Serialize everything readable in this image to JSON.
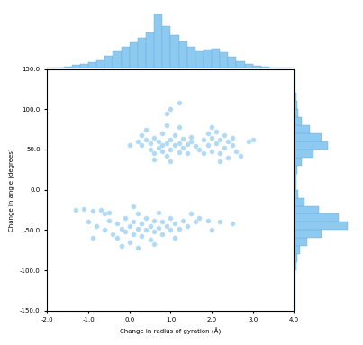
{
  "chart_data": {
    "type": "scatter",
    "x_label": "Change in radius of gyration (Å)",
    "y_label": "Change in angle (degrees)",
    "color": "#8ec9f0",
    "marker": "o",
    "xlim": [
      -2.0,
      4.0
    ],
    "xticks": [
      {
        "value": -2.0,
        "label": "-2.0"
      },
      {
        "value": -1.0,
        "label": "-1.0"
      },
      {
        "value": 0.0,
        "label": "0.0"
      },
      {
        "value": 1.0,
        "label": "1.0"
      },
      {
        "value": 2.0,
        "label": "2.0"
      },
      {
        "value": 3.0,
        "label": "3.0"
      },
      {
        "value": 4.0,
        "label": "4.0"
      }
    ],
    "ylim": [
      -150.0,
      150.0
    ],
    "yticks": [
      {
        "value": -150.0,
        "label": "-150.0"
      },
      {
        "value": -100.0,
        "label": "-100.0"
      },
      {
        "value": -50.0,
        "label": "-50.0"
      },
      {
        "value": 0.0,
        "label": "0.0"
      },
      {
        "value": 50.0,
        "label": "50.0"
      },
      {
        "value": 100.0,
        "label": "100.0"
      },
      {
        "value": 150.0,
        "label": "150.0"
      }
    ],
    "x": [
      0.2,
      0.3,
      0.4,
      0.5,
      0.5,
      0.6,
      0.6,
      0.7,
      0.7,
      0.8,
      0.8,
      0.8,
      0.9,
      0.9,
      1.0,
      1.0,
      1.1,
      1.1,
      1.2,
      1.2,
      1.3,
      1.3,
      1.4,
      1.4,
      1.5,
      1.5,
      1.6,
      0.4,
      0.9,
      1.2,
      0.6,
      1.0,
      0.3,
      1.7,
      0.0,
      1.8,
      1.9,
      1.9,
      2.0,
      2.0,
      2.1,
      2.1,
      2.2,
      2.2,
      2.3,
      2.3,
      2.4,
      2.4,
      2.5,
      2.6,
      2.7,
      2.0,
      1.8,
      2.5,
      2.2,
      1.0,
      1.2,
      0.9,
      2.9,
      3.0,
      -1.3,
      -1.1,
      -0.9,
      -0.7,
      -0.5,
      -1.0,
      -0.8,
      -0.6,
      -0.5,
      -0.4,
      -0.3,
      -0.3,
      -0.2,
      -0.1,
      -0.1,
      0.0,
      0.0,
      0.1,
      0.1,
      0.2,
      0.2,
      0.3,
      0.3,
      0.4,
      0.4,
      0.5,
      0.5,
      0.6,
      0.6,
      0.7,
      0.7,
      0.8,
      0.8,
      0.9,
      1.0,
      1.0,
      1.1,
      1.2,
      1.3,
      1.4,
      1.5,
      1.6,
      1.7,
      -0.2,
      0.2,
      0.6,
      -0.6,
      0.1,
      1.9,
      2.2,
      2.5,
      2.0,
      -0.9,
      1.1
    ],
    "y": [
      60,
      55,
      62,
      50,
      58,
      65,
      45,
      52,
      60,
      48,
      55,
      70,
      58,
      42,
      62,
      50,
      55,
      68,
      47,
      58,
      63,
      52,
      57,
      45,
      60,
      66,
      54,
      75,
      80,
      78,
      38,
      35,
      68,
      50,
      55,
      62,
      70,
      55,
      65,
      48,
      72,
      58,
      62,
      45,
      68,
      52,
      60,
      40,
      55,
      48,
      42,
      78,
      45,
      65,
      35,
      100,
      108,
      95,
      60,
      62,
      -25,
      -24,
      -26,
      -25,
      -28,
      -40,
      -45,
      -50,
      -38,
      -55,
      -42,
      -60,
      -48,
      -35,
      -52,
      -45,
      -65,
      -40,
      -55,
      -30,
      -48,
      -58,
      -42,
      -50,
      -35,
      -62,
      -45,
      -52,
      -38,
      -47,
      -28,
      -55,
      -40,
      -45,
      -50,
      -35,
      -42,
      -48,
      -38,
      -45,
      -30,
      -40,
      -35,
      -70,
      -72,
      -68,
      -30,
      -20,
      -38,
      -40,
      -42,
      -50,
      -60,
      -60
    ],
    "x_histogram": {
      "bins": [
        -2.0,
        -1.8,
        -1.6,
        -1.4,
        -1.2,
        -1.0,
        -0.8,
        -0.6,
        -0.4,
        -0.2,
        0.0,
        0.2,
        0.4,
        0.6,
        0.8,
        1.0,
        1.2,
        1.4,
        1.6,
        1.8,
        2.0,
        2.2,
        2.4,
        2.6,
        2.8,
        3.0,
        3.2,
        3.4,
        3.6,
        3.8,
        4.0
      ],
      "counts": [
        0,
        0,
        2,
        8,
        12,
        18,
        25,
        40,
        55,
        70,
        85,
        100,
        120,
        180,
        140,
        110,
        90,
        70,
        55,
        60,
        65,
        50,
        35,
        20,
        10,
        5,
        2,
        0,
        0,
        0
      ]
    },
    "y_histogram": {
      "bins": [
        -150,
        -140,
        -130,
        -120,
        -110,
        -100,
        -90,
        -80,
        -70,
        -60,
        -50,
        -40,
        -30,
        -20,
        -10,
        0,
        10,
        20,
        30,
        40,
        50,
        60,
        70,
        80,
        90,
        100,
        110,
        120,
        130,
        140,
        150
      ],
      "counts": [
        0,
        0,
        0,
        0,
        0,
        2,
        5,
        15,
        40,
        90,
        180,
        150,
        80,
        30,
        8,
        3,
        2,
        5,
        20,
        60,
        110,
        90,
        50,
        20,
        8,
        4,
        2,
        0,
        0,
        0
      ]
    }
  }
}
